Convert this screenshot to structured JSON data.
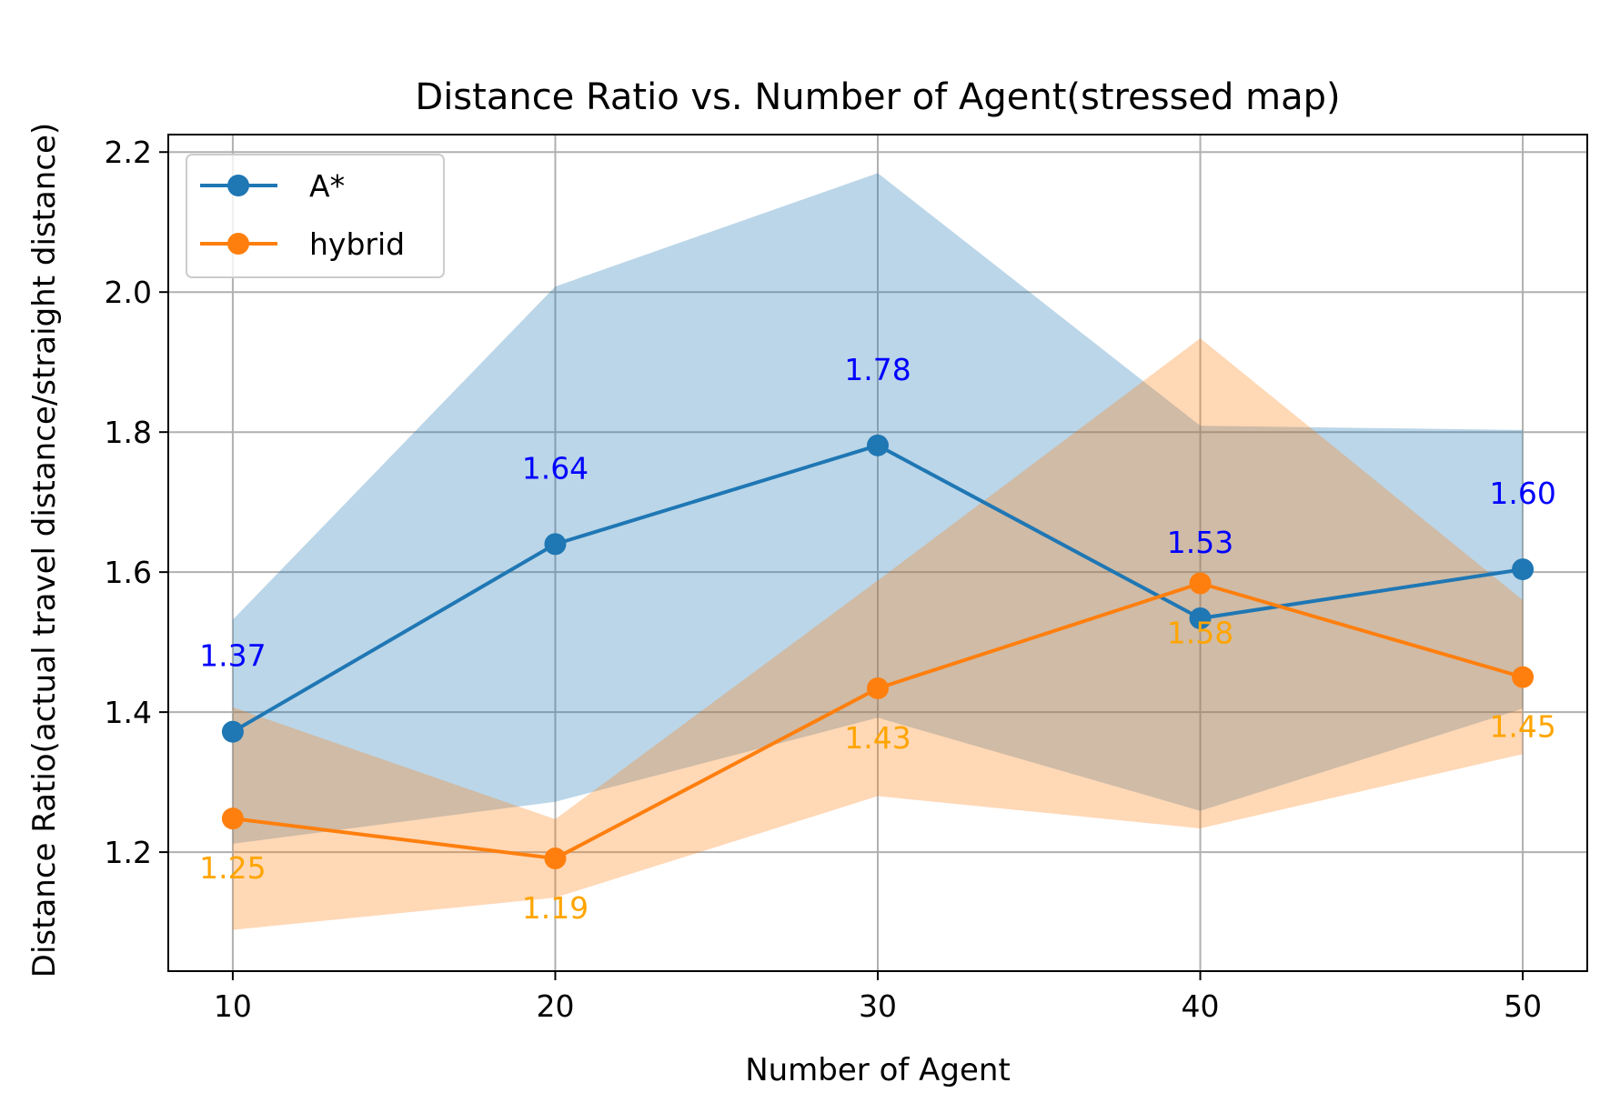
{
  "chart_data": {
    "type": "line",
    "title": "Distance Ratio vs. Number of Agent(stressed map)",
    "xlabel": "Number of  Agent",
    "ylabel": "Distance Ratio(actual travel distance/straight distance)",
    "x": [
      10,
      20,
      30,
      40,
      50
    ],
    "xticks": [
      "10",
      "20",
      "30",
      "40",
      "50"
    ],
    "yticks": [
      "1.2",
      "1.4",
      "1.6",
      "1.8",
      "2.0",
      "2.2"
    ],
    "xlim": [
      8,
      52
    ],
    "ylim": [
      1.03,
      2.225
    ],
    "grid": true,
    "legend_position": "upper-left",
    "series": [
      {
        "name": "A*",
        "color": "#1f77b4",
        "values": [
          1.372,
          1.64,
          1.781,
          1.534,
          1.604
        ],
        "upper": [
          1.532,
          2.008,
          2.17,
          1.809,
          1.803
        ],
        "lower": [
          1.212,
          1.272,
          1.392,
          1.259,
          1.405
        ],
        "labels": [
          "1.37",
          "1.64",
          "1.78",
          "1.53",
          "1.60"
        ],
        "label_color": "#0000ff",
        "label_side": "above"
      },
      {
        "name": "hybrid",
        "color": "#ff7f0e",
        "values": [
          1.248,
          1.191,
          1.434,
          1.584,
          1.45
        ],
        "upper": [
          1.407,
          1.247,
          1.588,
          1.934,
          1.56
        ],
        "lower": [
          1.089,
          1.135,
          1.28,
          1.234,
          1.34
        ],
        "labels": [
          "1.25",
          "1.19",
          "1.43",
          "1.58",
          "1.45"
        ],
        "label_color": "#ffa500",
        "label_side": "below"
      }
    ]
  }
}
